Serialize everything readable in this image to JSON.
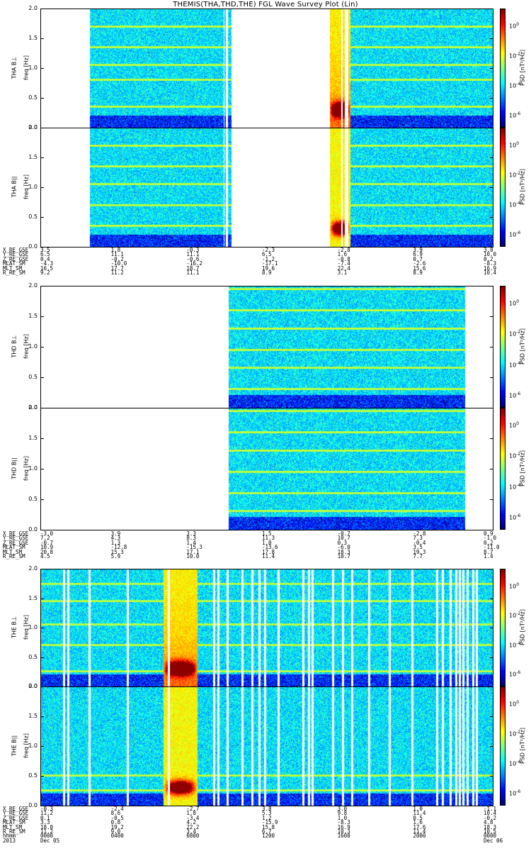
{
  "title": "THEMIS(THA,THD,THE) FGL Wave Survey Plot (Lin)",
  "y_ticks": [
    "2.0",
    "1.5",
    "1.0",
    "0.5",
    "0.0"
  ],
  "colorbar": {
    "label": "PSD [nT²/Hz]",
    "ticks": [
      {
        "base": "10",
        "exp": "0"
      },
      {
        "base": "10",
        "exp": "-2"
      },
      {
        "base": "10",
        "exp": "-4"
      },
      {
        "base": "10",
        "exp": "-6"
      }
    ]
  },
  "chart_data": [
    {
      "type": "heatmap",
      "probe": "THA",
      "ylabel": "THA B⊥",
      "yunit": "freq [Hz]",
      "ylim": [
        0,
        2.0
      ],
      "coverage_hours": [
        [
          2.6,
          9.7
        ],
        [
          9.75,
          9.8
        ],
        [
          9.9,
          10.1
        ],
        [
          15.3,
          15.9
        ],
        [
          16.0,
          16.1
        ],
        [
          16.3,
          24.0
        ]
      ],
      "harmonic_lines_hz": [
        0.35,
        0.8,
        1.05,
        1.35,
        1.7
      ],
      "enhanced_interval_hours": [
        15.3,
        16.4
      ],
      "color_range": [
        1e-07,
        10.0
      ]
    },
    {
      "type": "heatmap",
      "probe": "THA",
      "ylabel": "THA B||",
      "yunit": "freq [Hz]",
      "ylim": [
        0,
        2.0
      ],
      "coverage_hours": [
        [
          2.6,
          9.7
        ],
        [
          9.75,
          9.8
        ],
        [
          9.9,
          10.1
        ],
        [
          15.3,
          15.9
        ],
        [
          16.0,
          16.1
        ],
        [
          16.3,
          24.0
        ]
      ],
      "harmonic_lines_hz": [
        0.35,
        0.7,
        1.05,
        1.35,
        1.7
      ],
      "enhanced_interval_hours": [
        15.3,
        16.4
      ],
      "color_range": [
        1e-07,
        10.0
      ]
    },
    {
      "type": "heatmap",
      "probe": "THD",
      "ylabel": "THD B⊥",
      "yunit": "freq [Hz]",
      "ylim": [
        0,
        2.0
      ],
      "coverage_hours": [
        [
          9.95,
          22.5
        ]
      ],
      "harmonic_lines_hz": [
        0.3,
        0.65,
        0.95,
        1.3,
        1.6,
        1.95
      ],
      "color_range": [
        1e-07,
        10.0
      ]
    },
    {
      "type": "heatmap",
      "probe": "THD",
      "ylabel": "THD B||",
      "yunit": "freq [Hz]",
      "ylim": [
        0,
        2.0
      ],
      "coverage_hours": [
        [
          9.95,
          22.5
        ]
      ],
      "harmonic_lines_hz": [
        0.3,
        0.6,
        0.95,
        1.3,
        1.6,
        1.95
      ],
      "color_range": [
        1e-07,
        10.0
      ]
    },
    {
      "type": "heatmap",
      "probe": "THE",
      "ylabel": "THE B⊥",
      "yunit": "freq [Hz]",
      "ylim": [
        0,
        2.0
      ],
      "coverage_hours": [
        [
          0,
          24
        ]
      ],
      "gap_hours": [
        1.25,
        1.45,
        2.6,
        4.6,
        6.8,
        9.2,
        9.4,
        9.9,
        10.7,
        11.2,
        11.6,
        11.9,
        12.6,
        13.9,
        14.2,
        14.4,
        15.5,
        16.0,
        16.5,
        17.4,
        18.5,
        19.7,
        21.0,
        21.3,
        21.7,
        22.0,
        22.2,
        22.4,
        22.6,
        22.9,
        23.1
      ],
      "harmonic_lines_hz": [
        0.25,
        0.7,
        1.05,
        1.45,
        1.75
      ],
      "enhanced_interval_hours": [
        6.5,
        8.3
      ],
      "color_range": [
        1e-07,
        10.0
      ]
    },
    {
      "type": "heatmap",
      "probe": "THE",
      "ylabel": "THE B||",
      "yunit": "freq [Hz]",
      "ylim": [
        0,
        2.0
      ],
      "coverage_hours": [
        [
          0,
          24
        ]
      ],
      "gap_hours": [
        1.25,
        1.45,
        2.6,
        4.6,
        6.8,
        9.2,
        9.4,
        9.9,
        10.7,
        11.2,
        11.6,
        11.9,
        12.6,
        13.9,
        14.2,
        14.4,
        15.5,
        16.0,
        16.5,
        17.4,
        18.5,
        19.7,
        21.0,
        21.3,
        21.7,
        22.0,
        22.2,
        22.4,
        22.6,
        22.9,
        23.1
      ],
      "harmonic_lines_hz": [
        0.25,
        0.5
      ],
      "enhanced_interval_hours": [
        6.5,
        8.3
      ],
      "color_range": [
        1e-07,
        10.0
      ]
    }
  ],
  "ephemeris": [
    {
      "rows": [
        {
          "label": "X_RE_GSE",
          "values": [
            "3.5",
            "1.8",
            "-0.3",
            "-2.3",
            "-2.8",
            "3.9",
            "3.0"
          ]
        },
        {
          "label": "Y_RE_GSE",
          "values": [
            "6.5",
            "11.1",
            "11.1",
            "6.5",
            "1.6",
            "6.9",
            "10.0"
          ]
        },
        {
          "label": "Z_RE_GSE",
          "values": [
            "0.4",
            "-0.2",
            "-0.6",
            "-1.2",
            "-0.8",
            "0.7",
            "0.2"
          ]
        },
        {
          "label": "MLAT_SM",
          "values": [
            "-4.3",
            "-10.0",
            "-16.2",
            "-17.1",
            "-7.4",
            "-2.6",
            "-8.3"
          ]
        },
        {
          "label": "MLT_SM",
          "values": [
            "16.5",
            "17.7",
            "18.7",
            "19.6",
            "22.4",
            "15.6",
            "16.9"
          ]
        },
        {
          "label": "R_RE_SM",
          "values": [
            "9.2",
            "11.2",
            "11.1",
            "8.9",
            "3.1",
            "8.9",
            "10.4"
          ]
        }
      ]
    },
    {
      "rows": [
        {
          "label": "X_RE_GSE",
          "values": [
            "-3.0",
            "3.9",
            "3.3",
            "1.5",
            "-0.7",
            "-2.8",
            "0.9"
          ]
        },
        {
          "label": "Y_RE_GSE",
          "values": [
            "7.2",
            "4.3",
            "8.3",
            "11.3",
            "10.7",
            "7.3",
            "-1.0"
          ]
        },
        {
          "label": "Z_RE_GSE",
          "values": [
            "-0.7",
            "1.3",
            "1.4",
            "1.0",
            "0.3",
            "-0.4",
            "0.2"
          ]
        },
        {
          "label": "MLAT_SM",
          "values": [
            "10.9",
            "-12.8",
            "-15.3",
            "-13.6",
            "-6.0",
            "3.5",
            "-11.0"
          ]
        },
        {
          "label": "MLT_SM",
          "values": [
            "20.8",
            "15.3",
            "17.1",
            "17.8",
            "18.3",
            "19.3",
            "8.7"
          ]
        },
        {
          "label": "R_RE_SM",
          "values": [
            "4.5",
            "5.9",
            "10.0",
            "11.4",
            "10.7",
            "7.7",
            "1.4"
          ]
        }
      ]
    },
    {
      "rows": [
        {
          "label": "X_RE_GSE",
          "values": [
            "-0.3",
            "-2.4",
            "-2.7",
            "3.8",
            "3.0",
            "1.0",
            "-1.1"
          ]
        },
        {
          "label": "Y_RE_GSE",
          "values": [
            "11.2",
            "8.6",
            "1.8",
            "5.3",
            "9.8",
            "11.4",
            "10.4"
          ]
        },
        {
          "label": "Z_RE_GSE",
          "values": [
            "0.1",
            "-0.5",
            "-3.4",
            "1.2",
            "1.0",
            "0.5",
            "-0.2"
          ]
        },
        {
          "label": "MLAT_SM",
          "values": [
            "3.3",
            "0.8",
            "4.2",
            "-15.9",
            "-8.3",
            "1.6",
            "4.8"
          ]
        },
        {
          "label": "MLT_SM",
          "values": [
            "18.0",
            "19.2",
            "22.2",
            "15.8",
            "16.9",
            "17.6",
            "18.3"
          ]
        },
        {
          "label": "R_RE_SM",
          "values": [
            "11.2",
            "9.0",
            "3.4",
            "6.7",
            "10.3",
            "11.4",
            "10.5"
          ]
        },
        {
          "label": "hhmm",
          "values": [
            "0000",
            "0400",
            "0800",
            "1200",
            "1600",
            "2000",
            "0000"
          ]
        },
        {
          "label": "2013",
          "values": [
            "Dec 05",
            "",
            "",
            "",
            "",
            "",
            "Dec 06"
          ]
        }
      ]
    }
  ]
}
